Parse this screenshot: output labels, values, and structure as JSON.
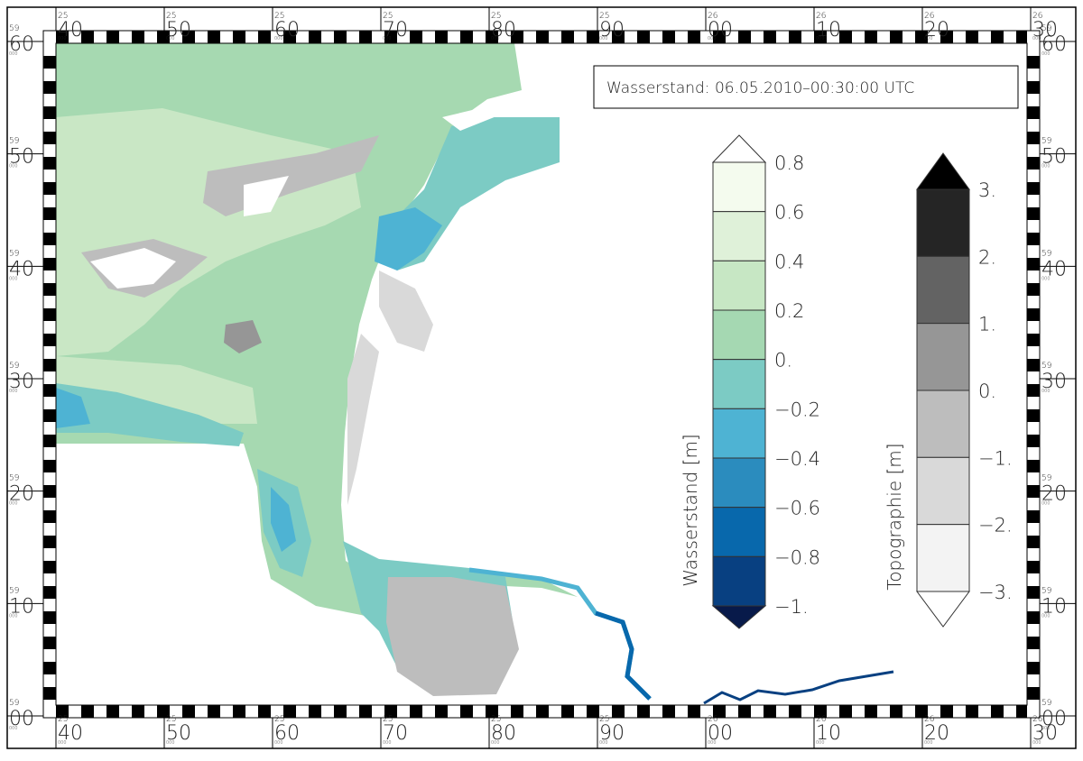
{
  "title": "Wasserstand: 06.05.2010–00:30:00 UTC",
  "x_axis": {
    "sub": "000",
    "ticks": [
      {
        "prefix": "25",
        "label": "40"
      },
      {
        "prefix": "25",
        "label": "50"
      },
      {
        "prefix": "25",
        "label": "60"
      },
      {
        "prefix": "25",
        "label": "70"
      },
      {
        "prefix": "25",
        "label": "80"
      },
      {
        "prefix": "25",
        "label": "90"
      },
      {
        "prefix": "26",
        "label": "00"
      },
      {
        "prefix": "26",
        "label": "10"
      },
      {
        "prefix": "26",
        "label": "20"
      },
      {
        "prefix": "26",
        "label": "30"
      }
    ]
  },
  "y_axis": {
    "sub": "000",
    "ticks": [
      {
        "prefix": "59",
        "label": "60"
      },
      {
        "prefix": "59",
        "label": "50"
      },
      {
        "prefix": "59",
        "label": "40"
      },
      {
        "prefix": "59",
        "label": "30"
      },
      {
        "prefix": "59",
        "label": "20"
      },
      {
        "prefix": "59",
        "label": "10"
      },
      {
        "prefix": "59",
        "label": "00"
      }
    ]
  },
  "colorbars": [
    {
      "label": "Wasserstand [m]",
      "ticks": [
        "0.8",
        "0.6",
        "0.4",
        "0.2",
        "0.",
        "−0.2",
        "−0.4",
        "−0.6",
        "−0.8",
        "−1."
      ],
      "colors": [
        "#ffffff",
        "#f4fbee",
        "#dff1d9",
        "#c7e7c4",
        "#a5d8b2",
        "#7ccbc4",
        "#4eb3d3",
        "#2b8cbe",
        "#0868ac",
        "#084081",
        "#081a4a"
      ]
    },
    {
      "label": "Topographie [m]",
      "ticks": [
        "3.",
        "2.",
        "1.",
        "0.",
        "−1.",
        "−2.",
        "−3."
      ],
      "colors": [
        "#000000",
        "#252525",
        "#636363",
        "#969696",
        "#bdbdbd",
        "#d9d9d9",
        "#f3f3f3",
        "#ffffff"
      ]
    }
  ]
}
